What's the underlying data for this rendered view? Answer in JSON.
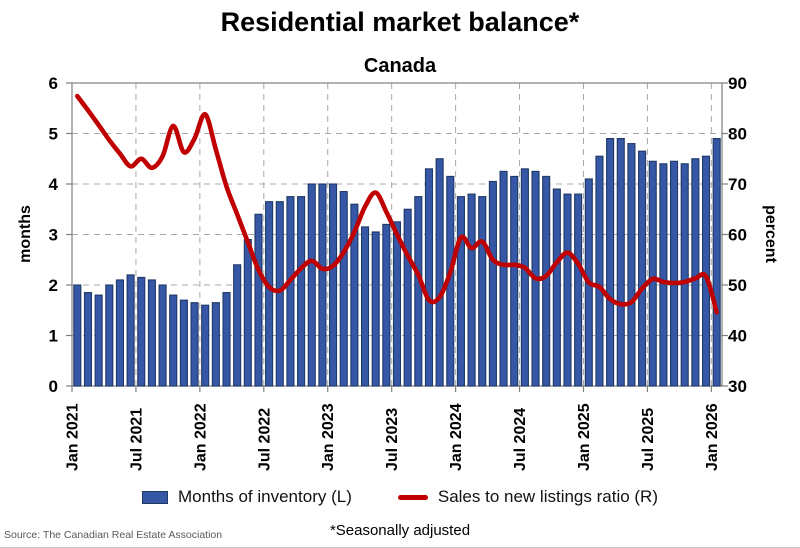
{
  "title": "Residential market balance*",
  "subtitle": "Canada",
  "legend": {
    "bar_label": "Months of inventory (L)",
    "line_label": "Sales to new listings ratio (R)"
  },
  "footer": {
    "source": "Source: The Canadian Real Estate Association",
    "note": "*Seasonally adjusted"
  },
  "colors": {
    "bar_fill": "#3557a5",
    "bar_border": "#1f3864",
    "line": "#c00000",
    "gridline": "#a8a8a8",
    "frame": "#7f7f7f",
    "tick_text": "#000000"
  },
  "chart_data": {
    "type": "bar+line",
    "x_start": "Jan 2021",
    "x_end": "Jan 2026",
    "x_tick_labels": [
      "Jan 2021",
      "Jul 2021",
      "Jan 2022",
      "Jul 2022",
      "Jan 2023",
      "Jul 2023",
      "Jan 2024",
      "Jul 2024",
      "Jan 2025",
      "Jul 2025",
      "Jan 2026"
    ],
    "left_axis": {
      "label": "months",
      "min": 0,
      "max": 6,
      "ticks": [
        0,
        1,
        2,
        3,
        4,
        5,
        6
      ]
    },
    "right_axis": {
      "label": "percent",
      "min": 30,
      "max": 90,
      "ticks": [
        30,
        40,
        50,
        60,
        70,
        80,
        90
      ]
    },
    "grid": "dashed",
    "legend_position": "bottom",
    "series": [
      {
        "name": "Months of inventory (L)",
        "type": "bar",
        "axis": "left",
        "values": [
          2.0,
          1.85,
          1.8,
          2.0,
          2.1,
          2.2,
          2.15,
          2.1,
          2.0,
          1.8,
          1.7,
          1.65,
          1.6,
          1.65,
          1.85,
          2.4,
          2.9,
          3.4,
          3.65,
          3.65,
          3.75,
          3.75,
          4.0,
          4.0,
          4.0,
          3.85,
          3.6,
          3.15,
          3.05,
          3.2,
          3.25,
          3.5,
          3.75,
          4.3,
          4.5,
          4.15,
          3.75,
          3.8,
          3.75,
          4.05,
          4.25,
          4.15,
          4.3,
          4.25,
          4.15,
          3.9,
          3.8,
          3.8,
          4.1,
          4.55,
          4.9,
          4.9,
          4.8,
          4.65,
          4.45,
          4.4,
          4.45,
          4.4,
          4.5,
          4.55,
          4.9
        ]
      },
      {
        "name": "Sales to new listings ratio (R)",
        "type": "line",
        "axis": "right",
        "values": [
          87.4,
          84.6,
          81.7,
          78.7,
          76.0,
          73.5,
          75.0,
          73.2,
          75.5,
          81.5,
          76.3,
          79.0,
          83.8,
          76.8,
          69.5,
          64.0,
          58.5,
          53.0,
          49.6,
          48.9,
          51.0,
          53.3,
          54.8,
          53.2,
          53.8,
          56.5,
          60.5,
          65.5,
          68.3,
          64.5,
          60.0,
          55.8,
          52.0,
          47.0,
          47.6,
          52.5,
          59.4,
          57.3,
          58.6,
          55.0,
          54.0,
          54.0,
          53.4,
          51.3,
          51.8,
          54.5,
          56.4,
          54.2,
          50.5,
          49.6,
          47.2,
          46.2,
          46.6,
          49.3,
          51.2,
          50.6,
          50.4,
          50.6,
          51.3,
          51.7,
          44.6
        ]
      }
    ]
  }
}
